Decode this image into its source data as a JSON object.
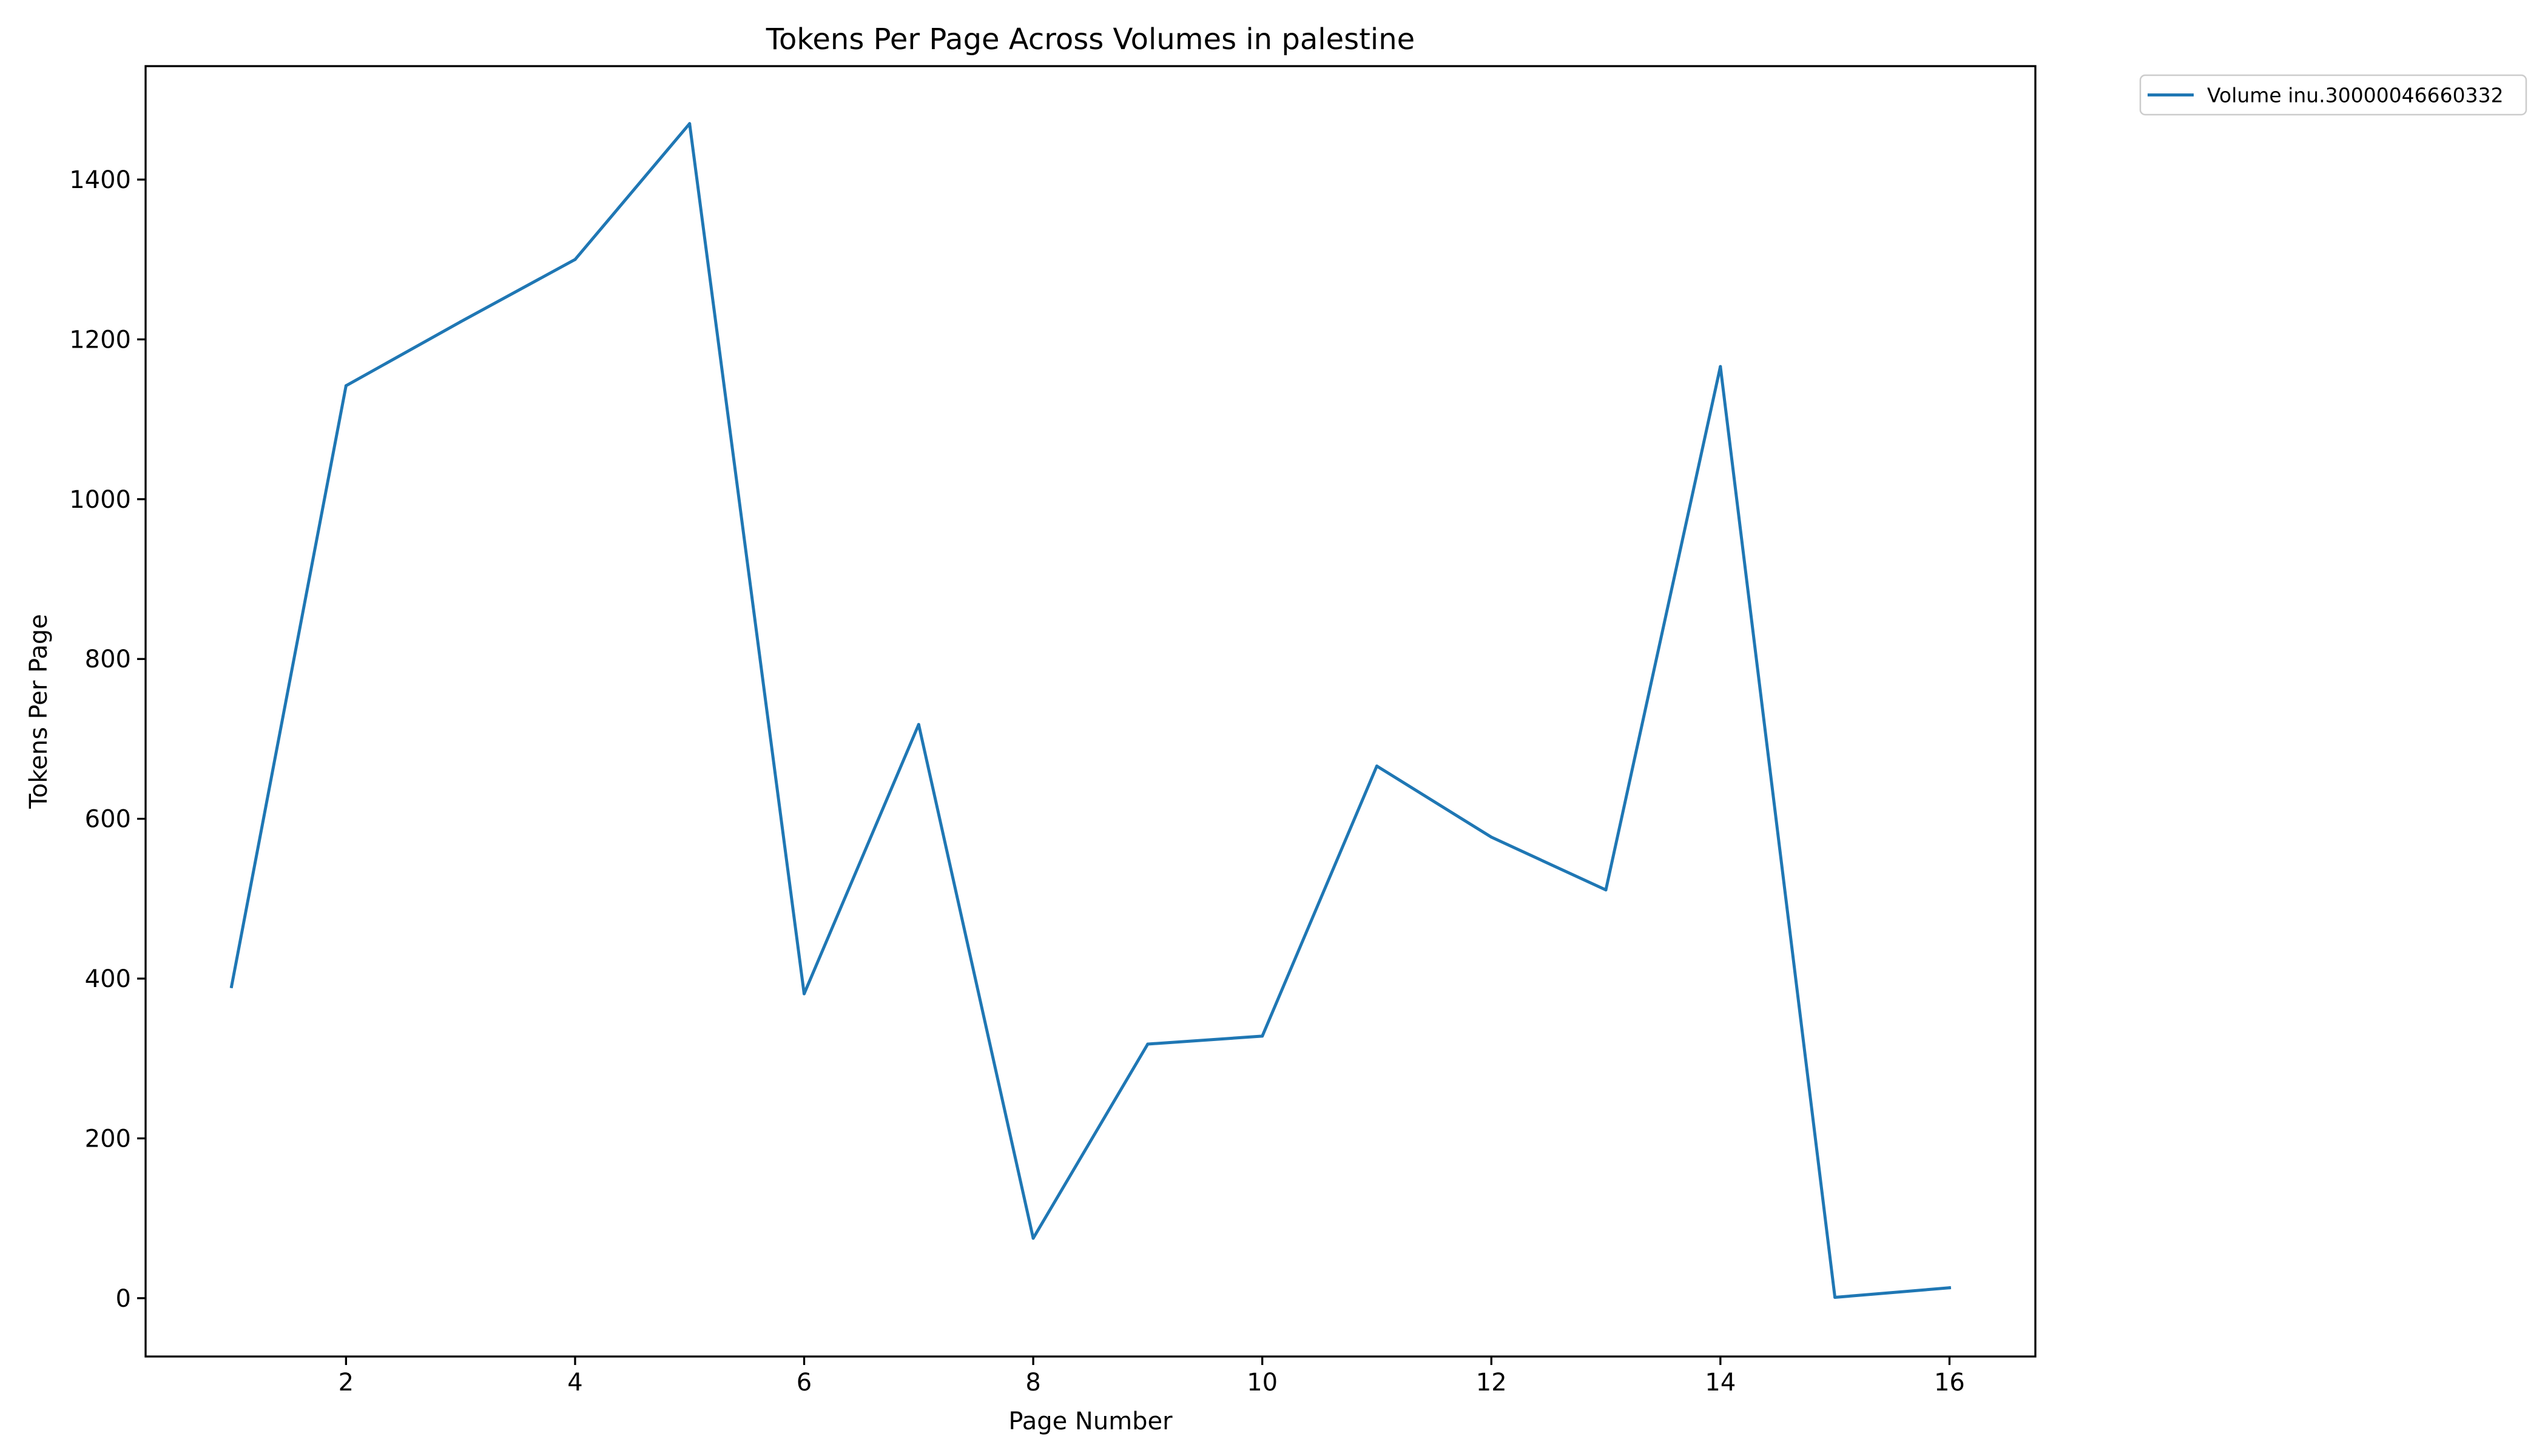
{
  "chart_data": {
    "type": "line",
    "title": "Tokens Per Page Across Volumes in palestine",
    "xlabel": "Page Number",
    "ylabel": "Tokens Per Page",
    "xlim": [
      0.25,
      16.75
    ],
    "ylim": [
      -73,
      1542
    ],
    "xticks": [
      2,
      4,
      6,
      8,
      10,
      12,
      14,
      16
    ],
    "yticks": [
      0,
      200,
      400,
      600,
      800,
      1000,
      1200,
      1400
    ],
    "x_tick_labels": [
      "2",
      "4",
      "6",
      "8",
      "10",
      "12",
      "14",
      "16"
    ],
    "y_tick_labels": [
      "0",
      "200",
      "400",
      "600",
      "800",
      "1000",
      "1200",
      "1400"
    ],
    "grid": false,
    "legend_position": "outside-top-right",
    "series": [
      {
        "name": "Volume inu.30000046660332",
        "color": "#1f77b4",
        "x": [
          1,
          2,
          3,
          4,
          5,
          6,
          7,
          8,
          9,
          10,
          11,
          12,
          13,
          14,
          15,
          16
        ],
        "y": [
          390,
          1142,
          1222,
          1300,
          1470,
          381,
          718,
          75,
          318,
          328,
          666,
          577,
          511,
          1166,
          1,
          13
        ]
      }
    ]
  }
}
